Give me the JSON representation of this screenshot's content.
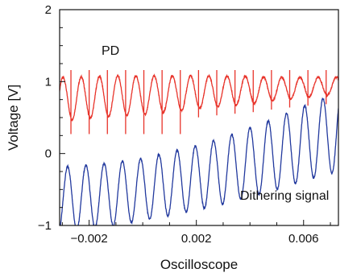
{
  "chart_data": {
    "type": "line",
    "title": "",
    "xlabel": "Oscilloscope",
    "ylabel": "Voltage [V]",
    "xlim": [
      -0.0031,
      0.0073
    ],
    "ylim": [
      -1.0,
      2.0
    ],
    "x_ticks": [
      -0.002,
      0.002,
      0.006
    ],
    "x_tick_labels": [
      "−0.002",
      "0.002",
      "0.006"
    ],
    "y_ticks": [
      -1,
      0,
      1,
      2
    ],
    "y_tick_labels": [
      "−1",
      "0",
      "1",
      "2"
    ],
    "grid": false,
    "legend": "none",
    "annotations": [
      {
        "text": "PD",
        "series": "PD"
      },
      {
        "text": "Dithering signal",
        "series": "Dithering signal"
      }
    ],
    "series": [
      {
        "name": "PD",
        "color": "#e8332a",
        "period": 0.00068,
        "x": [
          -0.0031,
          -0.002,
          -0.001,
          0.0,
          0.001,
          0.002,
          0.003,
          0.004,
          0.005,
          0.006,
          0.0073
        ],
        "center": [
          0.76,
          0.78,
          0.8,
          0.81,
          0.83,
          0.85,
          0.87,
          0.88,
          0.9,
          0.92,
          0.94
        ],
        "amplitude": [
          0.3,
          0.29,
          0.28,
          0.27,
          0.25,
          0.23,
          0.21,
          0.19,
          0.16,
          0.14,
          0.12
        ],
        "spike_top": 1.16,
        "spike_bottom": 0.27
      },
      {
        "name": "Dithering signal",
        "color": "#22399e",
        "period": 0.00068,
        "x": [
          -0.0031,
          -0.002,
          -0.001,
          0.0,
          0.001,
          0.002,
          0.003,
          0.004,
          0.005,
          0.006,
          0.0073
        ],
        "center": [
          -0.64,
          -0.6,
          -0.56,
          -0.5,
          -0.42,
          -0.34,
          -0.24,
          -0.12,
          0.0,
          0.14,
          0.3
        ],
        "amplitude": [
          0.45,
          0.44,
          0.44,
          0.43,
          0.44,
          0.45,
          0.46,
          0.48,
          0.5,
          0.52,
          0.55
        ]
      }
    ]
  }
}
